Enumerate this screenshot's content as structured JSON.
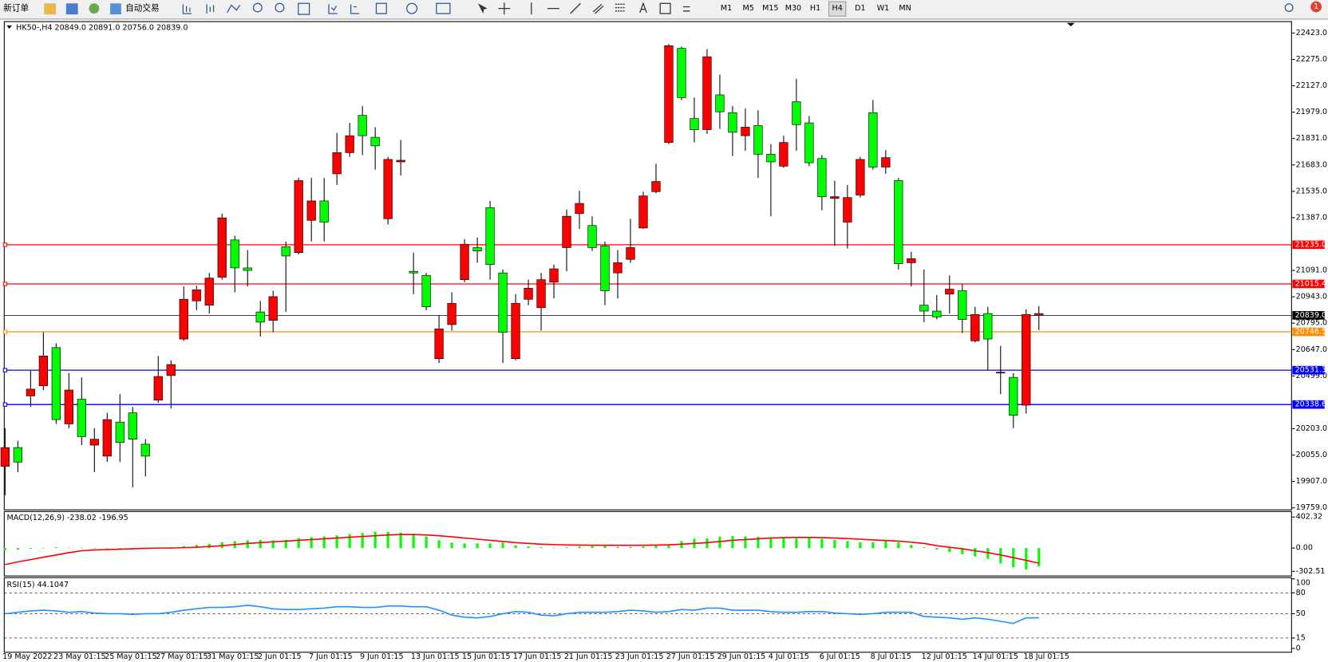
{
  "toolbar": {
    "new_order": "新订单",
    "auto_trading": "自动交易",
    "timeframes": [
      "M1",
      "M5",
      "M15",
      "M30",
      "H1",
      "H4",
      "D1",
      "W1",
      "MN"
    ],
    "notifications": "1"
  },
  "chart_data": [
    {
      "type": "candlestick",
      "title": "HK50-,H4  20849.0 20891.0 20756.0 20839.0",
      "up_color": "#00ff00",
      "down_color": "#ff0000",
      "categories": [
        "19 May 2022",
        null,
        null,
        null,
        "23 May 01:15",
        null,
        null,
        null,
        "25 May 01:15",
        null,
        null,
        null,
        "27 May 01:15",
        null,
        null,
        null,
        "31 May 01:15",
        null,
        null,
        null,
        "2 Jun 01:15",
        null,
        null,
        null,
        "7 Jun 01:15",
        null,
        null,
        null,
        "9 Jun 01:15",
        null,
        null,
        null,
        "13 Jun 01:15",
        null,
        null,
        null,
        "15 Jun 01:15",
        null,
        null,
        null,
        "17 Jun 01:15",
        null,
        null,
        null,
        "21 Jun 01:15",
        null,
        null,
        null,
        "23 Jun 01:15",
        null,
        null,
        null,
        "27 Jun 01:15",
        null,
        null,
        null,
        "29 Jun 01:15",
        null,
        null,
        null,
        "4 Jul 01:15",
        null,
        null,
        null,
        "6 Jul 01:15",
        null,
        null,
        null,
        "8 Jul 01:15",
        null,
        null,
        null,
        "12 Jul 01:15",
        null,
        null,
        null,
        "14 Jul 01:15",
        null,
        null,
        null,
        "18 Jul 01:15",
        null
      ],
      "open": [
        20097,
        20016,
        20425,
        20611,
        20254,
        20420,
        20159,
        20144,
        20254,
        20126,
        20144,
        20049,
        20496,
        20563,
        20929,
        20982,
        21048,
        21386,
        21105,
        21091,
        20801,
        20944,
        21172,
        21595,
        21481,
        21362,
        21752,
        21847,
        21847,
        21790,
        21714,
        21709,
        21077,
        20887,
        20763,
        20906,
        21238,
        21200,
        21124,
        20744,
        20906,
        20991,
        21039,
        21100,
        21395,
        21467,
        21219,
        20977,
        21134,
        21219,
        21509,
        21590,
        22352,
        22061,
        21881,
        22290,
        21981,
        21866,
        21895,
        21743,
        21700,
        21809,
        21909,
        21695,
        21505,
        21505,
        21500,
        21714,
        21671,
        21724,
        21129,
        21157,
        20863,
        20830,
        20986,
        20816,
        20844,
        20706,
        20520,
        20278,
        20844,
        20849
      ],
      "high": [
        20206,
        20135,
        20530,
        20744,
        20682,
        20515,
        20491,
        20206,
        20292,
        20397,
        20325,
        20144,
        20611,
        20587,
        21001,
        21006,
        21077,
        21410,
        21286,
        21205,
        20920,
        20977,
        21253,
        21610,
        21610,
        21610,
        21862,
        21919,
        22014,
        21895,
        21728,
        21823,
        21191,
        21077,
        20839,
        20968,
        21267,
        21276,
        21481,
        21096,
        20958,
        21039,
        21077,
        21124,
        21433,
        21538,
        21395,
        21253,
        21205,
        21381,
        21533,
        21690,
        22361,
        22347,
        22061,
        22333,
        22190,
        22014,
        21999,
        21990,
        21800,
        21847,
        22166,
        21957,
        21738,
        21595,
        21571,
        21728,
        22047,
        21766,
        21610,
        21196,
        21096,
        20953,
        21063,
        21015,
        20887,
        20887,
        20668,
        20515,
        20873,
        20891
      ],
      "low": [
        19830,
        19959,
        20325,
        20420,
        20230,
        20206,
        20111,
        19959,
        20016,
        20016,
        19873,
        19935,
        20349,
        20316,
        20696,
        20868,
        20849,
        21039,
        20968,
        21001,
        20720,
        20744,
        20858,
        21181,
        21253,
        21253,
        21571,
        21728,
        21738,
        21657,
        21348,
        21624,
        20958,
        20868,
        20572,
        20753,
        21025,
        21134,
        21039,
        20572,
        20587,
        20896,
        20753,
        20934,
        21086,
        21324,
        21200,
        20896,
        20934,
        21134,
        21324,
        21524,
        21800,
        22047,
        21809,
        21857,
        21885,
        21733,
        21762,
        21610,
        21395,
        21667,
        21762,
        21676,
        21429,
        21229,
        21214,
        21500,
        21657,
        21633,
        21096,
        21001,
        20801,
        20816,
        20849,
        20740,
        20687,
        20534,
        20397,
        20206,
        20287,
        20756
      ],
      "close": [
        19992,
        20097,
        20387,
        20444,
        20658,
        20230,
        20368,
        20111,
        20049,
        20240,
        20292,
        20116,
        20363,
        20501,
        20706,
        20920,
        20896,
        21053,
        21262,
        21105,
        20858,
        20811,
        21224,
        21191,
        21372,
        21481,
        21633,
        21752,
        21961,
        21838,
        21381,
        21700,
        21086,
        21063,
        20596,
        20787,
        21039,
        21219,
        21443,
        21077,
        20596,
        20929,
        20882,
        21025,
        21219,
        21410,
        21343,
        21229,
        21077,
        21153,
        21329,
        21533,
        21809,
        22337,
        21943,
        21881,
        22076,
        21976,
        21847,
        21904,
        21743,
        21676,
        22038,
        21919,
        21719,
        21495,
        21362,
        21514,
        21976,
        21671,
        21595,
        21134,
        20896,
        20863,
        20958,
        20977,
        20696,
        20849,
        20515,
        20491,
        20335,
        20839
      ],
      "ylim": [
        19750,
        22480
      ],
      "yticks": [
        {
          "value": 22423,
          "label": "22423.0"
        },
        {
          "value": 22275,
          "label": "22275.0"
        },
        {
          "value": 22127,
          "label": "22127.0"
        },
        {
          "value": 21979,
          "label": "21979.0"
        },
        {
          "value": 21831,
          "label": "21831.0"
        },
        {
          "value": 21683,
          "label": "21683.0"
        },
        {
          "value": 21535,
          "label": "21535.0"
        },
        {
          "value": 21387,
          "label": "21387.0"
        },
        {
          "value": 21091,
          "label": "21091.0"
        },
        {
          "value": 20943,
          "label": "20943.0"
        },
        {
          "value": 20795,
          "label": "20795.0"
        },
        {
          "value": 20647,
          "label": "20647.0"
        },
        {
          "value": 20499,
          "label": "20499.0"
        },
        {
          "value": 20203,
          "label": "20203.0"
        },
        {
          "value": 20055,
          "label": "20055.0"
        },
        {
          "value": 19907,
          "label": "19907.0"
        },
        {
          "value": 19759,
          "label": "19759.0"
        }
      ],
      "levels": [
        {
          "value": 21235,
          "label": "21235.0",
          "color": "#ff0000"
        },
        {
          "value": 21015.4,
          "label": "21015.4",
          "color": "#ff0000"
        },
        {
          "value": 20746.5,
          "label": "20746.5",
          "color": "#ff8c00"
        },
        {
          "value": 20531.3,
          "label": "20531.3",
          "color": "#0000ff"
        },
        {
          "value": 20338.6,
          "label": "20338.6",
          "color": "#0000ff"
        }
      ],
      "current_price": {
        "value": 20839,
        "label": "20839.0",
        "color": "#000000"
      }
    },
    {
      "type": "bar",
      "title": "MACD(12,26,9) -238.02 -196.95",
      "series": [
        {
          "type": "bar",
          "color": "#00ff00",
          "values": [
            -30,
            -20,
            -10,
            0,
            10,
            5,
            5,
            -5,
            -5,
            -5,
            0,
            -5,
            5,
            10,
            25,
            40,
            55,
            75,
            90,
            100,
            105,
            100,
            105,
            130,
            140,
            150,
            165,
            180,
            195,
            210,
            210,
            200,
            185,
            150,
            100,
            70,
            60,
            60,
            60,
            70,
            35,
            20,
            10,
            5,
            10,
            20,
            25,
            25,
            15,
            15,
            20,
            30,
            40,
            90,
            120,
            125,
            145,
            155,
            150,
            145,
            140,
            130,
            125,
            130,
            120,
            105,
            90,
            75,
            75,
            90,
            75,
            40,
            10,
            -20,
            -50,
            -80,
            -110,
            -140,
            -200,
            -250,
            -280,
            -238.02
          ]
        },
        {
          "type": "line",
          "color": "#ff0000",
          "values": [
            -215,
            -180,
            -150,
            -120,
            -90,
            -60,
            -35,
            -25,
            -20,
            -15,
            -10,
            -5,
            0,
            0,
            5,
            10,
            20,
            30,
            45,
            60,
            70,
            80,
            90,
            100,
            110,
            120,
            130,
            140,
            150,
            160,
            170,
            175,
            175,
            170,
            160,
            145,
            130,
            115,
            100,
            85,
            70,
            60,
            50,
            45,
            40,
            38,
            36,
            35,
            35,
            35,
            35,
            38,
            42,
            50,
            60,
            70,
            85,
            100,
            110,
            120,
            130,
            135,
            138,
            138,
            135,
            130,
            122,
            115,
            105,
            98,
            90,
            75,
            60,
            30,
            10,
            -10,
            -35,
            -60,
            -90,
            -125,
            -160,
            -196.95
          ]
        }
      ],
      "ylim": [
        -357,
        468
      ],
      "yticks": [
        402.32,
        {
          "value": 0,
          "label": "0.00"
        },
        -302.51
      ]
    },
    {
      "type": "line",
      "title": "RSI(15) 44.1047",
      "grid": true,
      "series": [
        {
          "color": "#1e90ff",
          "values": [
            50,
            52,
            54,
            55,
            54,
            52,
            53,
            51,
            50,
            50,
            49,
            50,
            50,
            52,
            55,
            57,
            59,
            59,
            60,
            62,
            60,
            57,
            56,
            56,
            57,
            58,
            60,
            60,
            59,
            59,
            61,
            61,
            60,
            60,
            55,
            48,
            45,
            44,
            46,
            50,
            53,
            52,
            48,
            47,
            50,
            52,
            52,
            52,
            53,
            55,
            54,
            52,
            53,
            56,
            55,
            58,
            58,
            55,
            55,
            55,
            53,
            52,
            52,
            53,
            53,
            51,
            50,
            49,
            50,
            52,
            52,
            52,
            46,
            45,
            44,
            42,
            44,
            42,
            39,
            36,
            44,
            44.1047
          ]
        }
      ],
      "ylim": [
        0,
        100
      ],
      "yticks": [
        100,
        80,
        50,
        15,
        0
      ]
    }
  ]
}
